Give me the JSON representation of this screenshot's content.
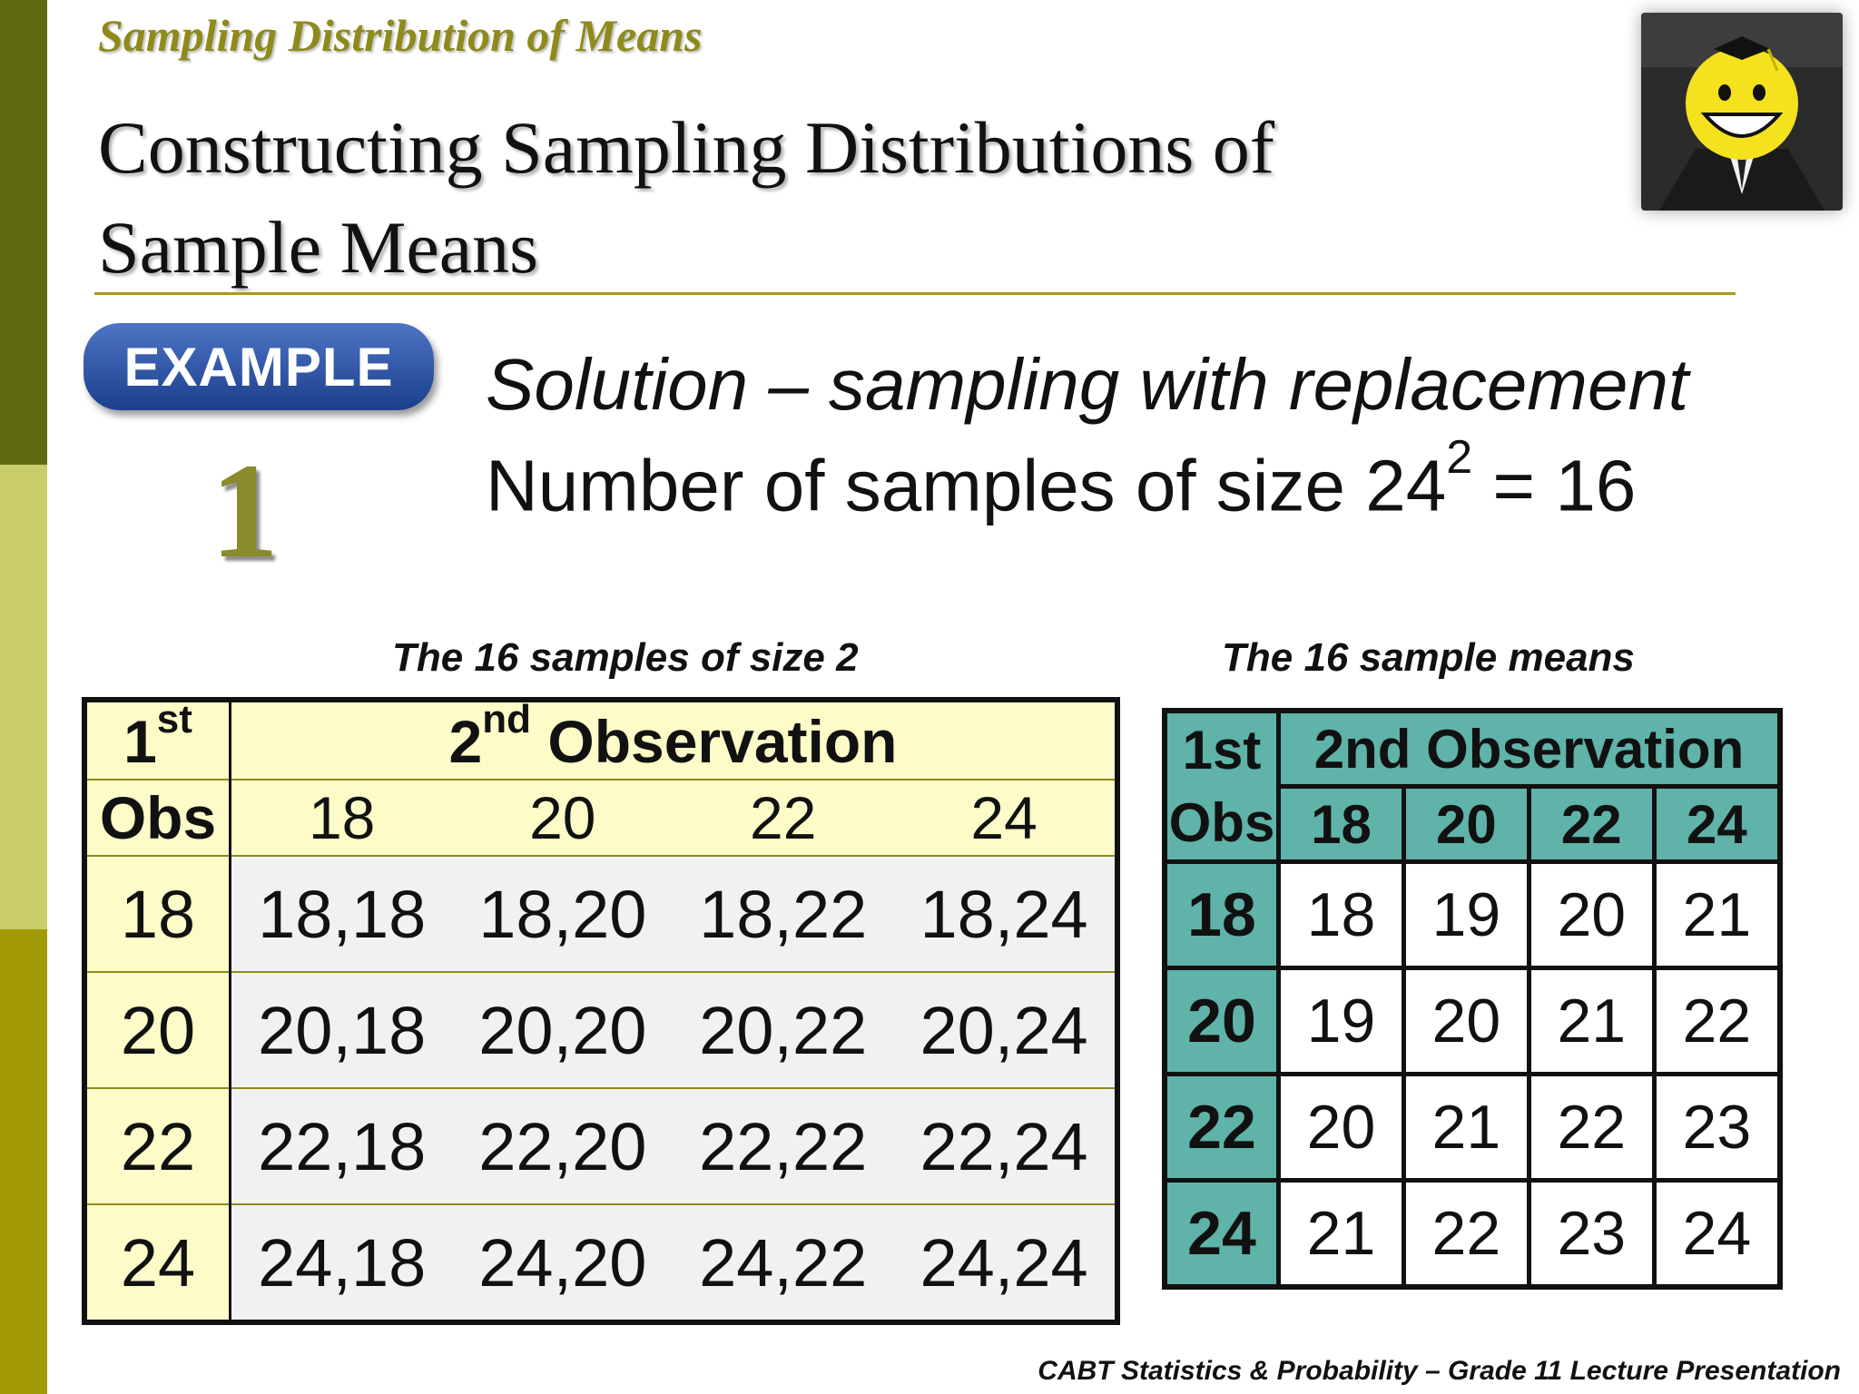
{
  "header": {
    "subtitle": "Sampling Distribution of Means",
    "title_line1": "Constructing Sampling Distributions of",
    "title_line2": "Sample Means"
  },
  "example": {
    "badge_label": "EXAMPLE",
    "number": "1"
  },
  "solution": {
    "line1": "Solution – sampling with replacement",
    "line2_prefix": "Number of samples of size 2",
    "base": "4",
    "exponent": "2",
    "result": "= 16"
  },
  "left_table": {
    "caption": "The 16 samples of size 2",
    "first_label": "1",
    "first_sup": "st",
    "second_label_num": "2",
    "second_sup": "nd",
    "second_label": "Observation",
    "obs_label": "Obs",
    "columns": [
      "18",
      "20",
      "22",
      "24"
    ],
    "rows": [
      {
        "label": "18",
        "cells": [
          "18,18",
          "18,20",
          "18,22",
          "18,24"
        ]
      },
      {
        "label": "20",
        "cells": [
          "20,18",
          "20,20",
          "20,22",
          "20,24"
        ]
      },
      {
        "label": "22",
        "cells": [
          "22,18",
          "22,20",
          "22,22",
          "22,24"
        ]
      },
      {
        "label": "24",
        "cells": [
          "24,18",
          "24,20",
          "24,22",
          "24,24"
        ]
      }
    ]
  },
  "right_table": {
    "caption": "The 16 sample means",
    "first_label": "1st",
    "obs_label": "Obs",
    "second_label": "2nd Observation",
    "columns": [
      "18",
      "20",
      "22",
      "24"
    ],
    "rows": [
      {
        "label": "18",
        "cells": [
          "18",
          "19",
          "20",
          "21"
        ]
      },
      {
        "label": "20",
        "cells": [
          "19",
          "20",
          "21",
          "22"
        ]
      },
      {
        "label": "22",
        "cells": [
          "20",
          "21",
          "22",
          "23"
        ]
      },
      {
        "label": "24",
        "cells": [
          "21",
          "22",
          "23",
          "24"
        ]
      }
    ]
  },
  "footer": "CABT Statistics & Probability – Grade 11 Lecture Presentation",
  "colors": {
    "accent_olive": "#8e8a1c",
    "teal": "#5fb3a9",
    "cream": "#fdfcc8",
    "badge_blue": "#1b3f8c"
  }
}
